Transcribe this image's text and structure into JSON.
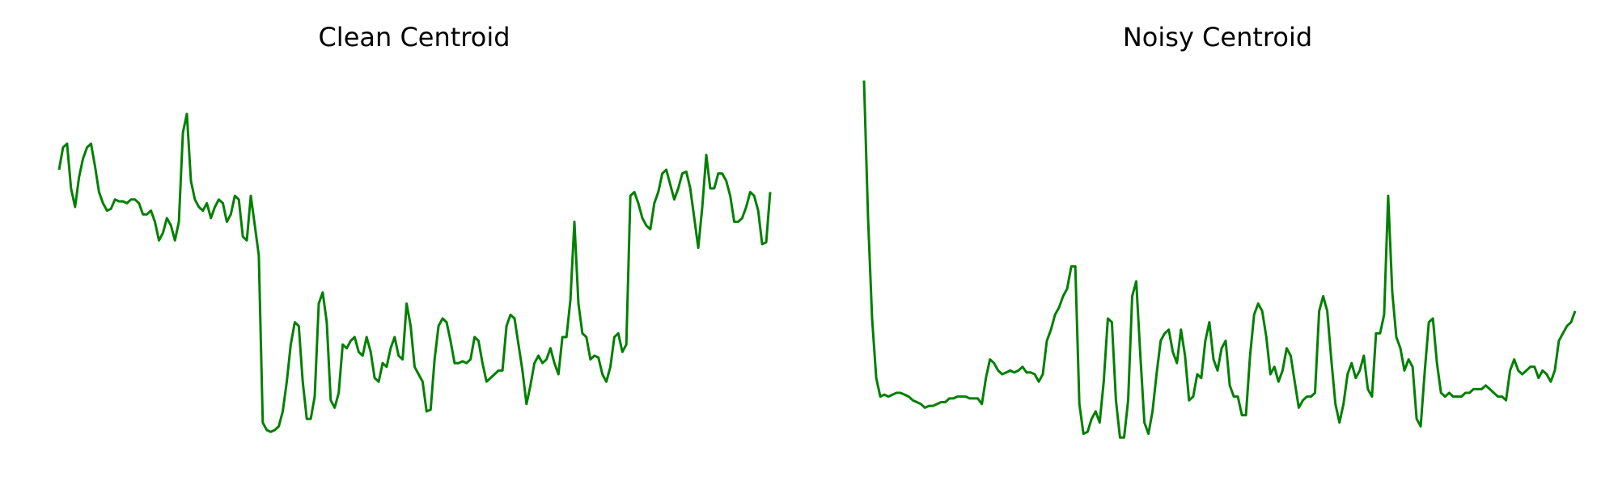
{
  "chart_data": [
    {
      "type": "line",
      "title": "Clean Centroid",
      "xlabel": "",
      "ylabel": "",
      "grid": false,
      "axes_visible": false,
      "color": "#008000",
      "ylim": [
        0,
        1
      ],
      "values": [
        0.75,
        0.81,
        0.82,
        0.7,
        0.65,
        0.73,
        0.78,
        0.81,
        0.82,
        0.76,
        0.69,
        0.66,
        0.64,
        0.645,
        0.67,
        0.665,
        0.665,
        0.66,
        0.67,
        0.67,
        0.66,
        0.63,
        0.63,
        0.64,
        0.61,
        0.56,
        0.58,
        0.62,
        0.6,
        0.56,
        0.61,
        0.85,
        0.9,
        0.72,
        0.67,
        0.65,
        0.64,
        0.66,
        0.62,
        0.65,
        0.67,
        0.66,
        0.61,
        0.63,
        0.68,
        0.67,
        0.57,
        0.56,
        0.68,
        0.6,
        0.52,
        0.07,
        0.05,
        0.045,
        0.05,
        0.06,
        0.1,
        0.18,
        0.28,
        0.34,
        0.33,
        0.18,
        0.08,
        0.08,
        0.14,
        0.39,
        0.42,
        0.34,
        0.13,
        0.11,
        0.15,
        0.28,
        0.27,
        0.29,
        0.3,
        0.26,
        0.25,
        0.3,
        0.26,
        0.19,
        0.18,
        0.23,
        0.22,
        0.27,
        0.3,
        0.25,
        0.24,
        0.39,
        0.33,
        0.22,
        0.2,
        0.18,
        0.1,
        0.105,
        0.24,
        0.33,
        0.35,
        0.34,
        0.29,
        0.23,
        0.23,
        0.235,
        0.23,
        0.24,
        0.3,
        0.29,
        0.23,
        0.18,
        0.19,
        0.2,
        0.21,
        0.21,
        0.33,
        0.36,
        0.35,
        0.28,
        0.21,
        0.12,
        0.17,
        0.23,
        0.25,
        0.23,
        0.24,
        0.27,
        0.23,
        0.2,
        0.3,
        0.3,
        0.4,
        0.61,
        0.39,
        0.31,
        0.3,
        0.24,
        0.25,
        0.245,
        0.2,
        0.18,
        0.22,
        0.3,
        0.31,
        0.26,
        0.28,
        0.68,
        0.69,
        0.66,
        0.62,
        0.6,
        0.59,
        0.66,
        0.69,
        0.74,
        0.75,
        0.71,
        0.67,
        0.7,
        0.74,
        0.745,
        0.7,
        0.62,
        0.54,
        0.65,
        0.79,
        0.7,
        0.7,
        0.74,
        0.74,
        0.72,
        0.68,
        0.61,
        0.61,
        0.62,
        0.65,
        0.69,
        0.68,
        0.64,
        0.55,
        0.555,
        0.69
      ]
    },
    {
      "type": "line",
      "title": "Noisy Centroid",
      "xlabel": "",
      "ylabel": "",
      "grid": false,
      "axes_visible": false,
      "color": "#008000",
      "ylim": [
        0,
        1
      ],
      "values": [
        0.99,
        0.62,
        0.35,
        0.19,
        0.14,
        0.145,
        0.14,
        0.145,
        0.15,
        0.15,
        0.145,
        0.14,
        0.13,
        0.125,
        0.12,
        0.11,
        0.115,
        0.115,
        0.12,
        0.125,
        0.125,
        0.135,
        0.135,
        0.14,
        0.14,
        0.14,
        0.135,
        0.135,
        0.135,
        0.12,
        0.19,
        0.24,
        0.23,
        0.21,
        0.2,
        0.205,
        0.21,
        0.205,
        0.21,
        0.22,
        0.205,
        0.205,
        0.2,
        0.18,
        0.2,
        0.29,
        0.32,
        0.36,
        0.38,
        0.41,
        0.43,
        0.49,
        0.49,
        0.12,
        0.04,
        0.045,
        0.08,
        0.1,
        0.07,
        0.18,
        0.35,
        0.34,
        0.13,
        0.03,
        0.03,
        0.13,
        0.41,
        0.45,
        0.25,
        0.07,
        0.04,
        0.1,
        0.2,
        0.29,
        0.31,
        0.32,
        0.26,
        0.23,
        0.32,
        0.25,
        0.13,
        0.14,
        0.2,
        0.19,
        0.29,
        0.34,
        0.24,
        0.21,
        0.27,
        0.29,
        0.17,
        0.14,
        0.14,
        0.09,
        0.09,
        0.25,
        0.36,
        0.39,
        0.37,
        0.3,
        0.2,
        0.22,
        0.18,
        0.21,
        0.27,
        0.25,
        0.18,
        0.11,
        0.13,
        0.14,
        0.14,
        0.15,
        0.37,
        0.41,
        0.37,
        0.24,
        0.12,
        0.07,
        0.12,
        0.2,
        0.23,
        0.19,
        0.21,
        0.25,
        0.16,
        0.14,
        0.31,
        0.31,
        0.36,
        0.68,
        0.42,
        0.3,
        0.27,
        0.21,
        0.24,
        0.22,
        0.08,
        0.06,
        0.21,
        0.34,
        0.35,
        0.23,
        0.15,
        0.14,
        0.15,
        0.14,
        0.14,
        0.14,
        0.15,
        0.15,
        0.16,
        0.16,
        0.16,
        0.17,
        0.16,
        0.15,
        0.14,
        0.14,
        0.13,
        0.21,
        0.24,
        0.21,
        0.2,
        0.21,
        0.22,
        0.22,
        0.19,
        0.21,
        0.2,
        0.18,
        0.21,
        0.29,
        0.31,
        0.33,
        0.34,
        0.37
      ]
    }
  ]
}
